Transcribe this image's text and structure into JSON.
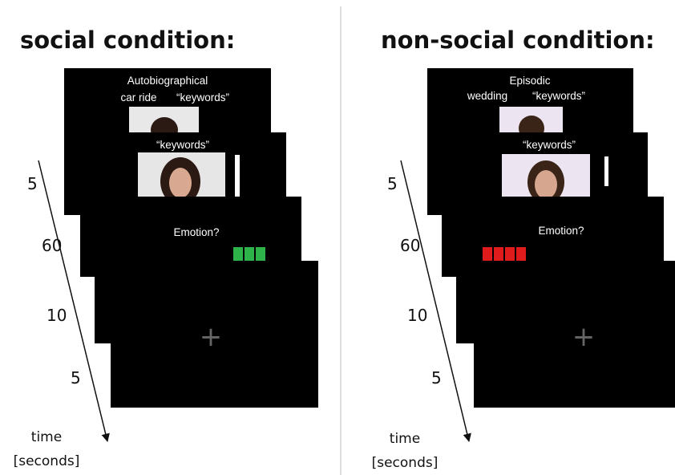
{
  "left": {
    "title": "social condition:",
    "screens": [
      {
        "lines": [
          "Autobiographical",
          "car ride",
          "“keywords”"
        ]
      },
      {
        "lines": [
          "“keywords”"
        ]
      },
      {
        "lines": [
          "Emotion?"
        ]
      },
      {
        "lines": [
          "+"
        ]
      }
    ],
    "durations": [
      "5",
      "60",
      "10",
      "5"
    ],
    "axis_label": [
      "time",
      "[seconds]"
    ]
  },
  "right": {
    "title": "non-social condition:",
    "screens": [
      {
        "lines": [
          "Episodic",
          "wedding",
          "“keywords”"
        ]
      },
      {
        "lines": [
          "“keywords”"
        ]
      },
      {
        "lines": [
          "Emotion?"
        ]
      },
      {
        "lines": [
          "+"
        ]
      }
    ],
    "durations": [
      "5",
      "60",
      "10",
      "5"
    ],
    "axis_label": [
      "time",
      "[seconds]"
    ]
  }
}
